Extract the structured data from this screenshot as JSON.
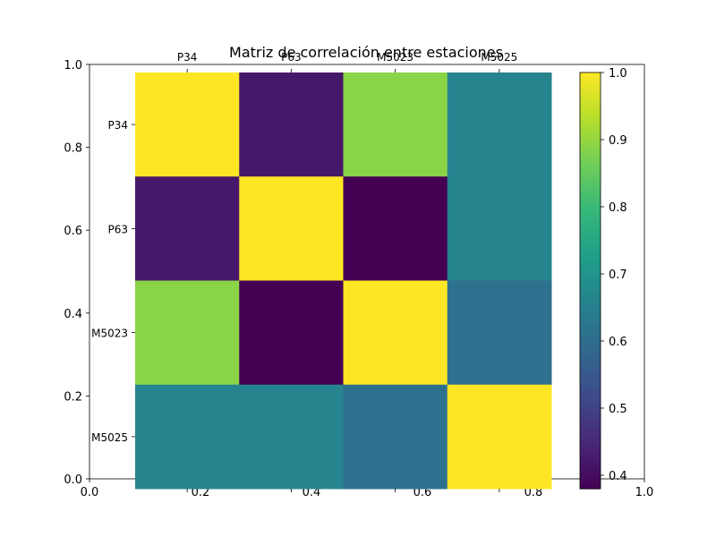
{
  "chart_data": {
    "type": "heatmap",
    "title": "Matriz de correlación entre estaciones",
    "row_labels": [
      "P34",
      "P63",
      "M5023",
      "M5025"
    ],
    "col_labels": [
      "P34",
      "P63",
      "M5023",
      "M5025"
    ],
    "values": [
      [
        1.0,
        0.42,
        0.89,
        0.66
      ],
      [
        0.42,
        1.0,
        0.38,
        0.66
      ],
      [
        0.89,
        0.38,
        1.0,
        0.61
      ],
      [
        0.66,
        0.66,
        0.61,
        1.0
      ]
    ],
    "colorbar": {
      "min": 0.38,
      "max": 1.0,
      "ticks": [
        0.4,
        0.5,
        0.6,
        0.7,
        0.8,
        0.9,
        1.0
      ],
      "colormap": "viridis"
    },
    "background_axes": {
      "xlim": [
        0.0,
        1.0
      ],
      "ylim": [
        0.0,
        1.0
      ],
      "xticks": [
        0.0,
        0.2,
        0.4,
        0.6,
        0.8,
        1.0
      ],
      "yticks": [
        0.0,
        0.2,
        0.4,
        0.6,
        0.8,
        1.0
      ]
    },
    "grid": false,
    "legend": "colorbar-right"
  }
}
